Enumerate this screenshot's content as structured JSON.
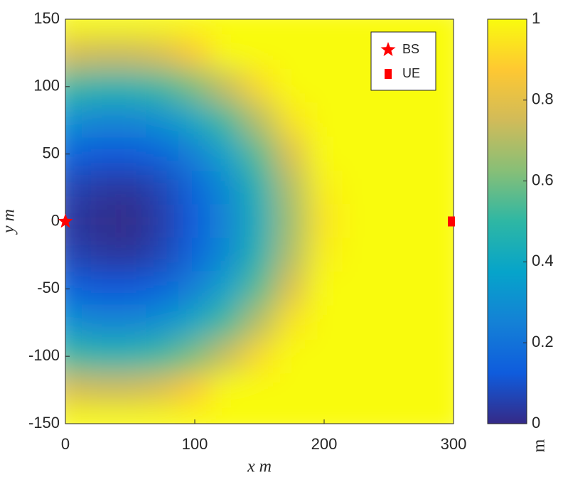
{
  "chart_data": {
    "type": "heatmap",
    "x_label": "x m",
    "y_label": "y m",
    "x": [
      0,
      25,
      50,
      75,
      100,
      125,
      150,
      175,
      200,
      225,
      250,
      275,
      300
    ],
    "y": [
      150,
      125,
      100,
      75,
      50,
      25,
      0,
      -25,
      -50,
      -75,
      -100,
      -125,
      -150
    ],
    "z": [
      [
        1,
        1,
        1,
        1,
        1,
        1,
        1,
        1,
        1,
        1,
        1,
        1,
        1
      ],
      [
        0.78,
        0.75,
        0.75,
        0.79,
        0.88,
        1,
        1,
        1,
        1,
        1,
        1,
        1,
        1
      ],
      [
        0.52,
        0.48,
        0.48,
        0.52,
        0.61,
        0.74,
        0.92,
        1,
        1,
        1,
        1,
        1,
        1
      ],
      [
        0.31,
        0.27,
        0.27,
        0.31,
        0.4,
        0.53,
        0.71,
        0.94,
        1,
        1,
        1,
        1,
        1
      ],
      [
        0.16,
        0.12,
        0.12,
        0.16,
        0.25,
        0.38,
        0.56,
        0.79,
        1,
        1,
        1,
        1,
        1
      ],
      [
        0.07,
        0.04,
        0.03,
        0.07,
        0.16,
        0.29,
        0.47,
        0.7,
        0.97,
        1,
        1,
        1,
        1
      ],
      [
        0.04,
        0.01,
        0.0,
        0.05,
        0.13,
        0.27,
        0.44,
        0.67,
        0.94,
        1,
        1,
        1,
        1
      ],
      [
        0.07,
        0.04,
        0.03,
        0.07,
        0.16,
        0.29,
        0.47,
        0.7,
        0.97,
        1,
        1,
        1,
        1
      ],
      [
        0.16,
        0.12,
        0.12,
        0.16,
        0.25,
        0.38,
        0.56,
        0.79,
        1,
        1,
        1,
        1,
        1
      ],
      [
        0.31,
        0.27,
        0.27,
        0.31,
        0.4,
        0.53,
        0.71,
        0.94,
        1,
        1,
        1,
        1,
        1
      ],
      [
        0.52,
        0.48,
        0.48,
        0.52,
        0.61,
        0.74,
        0.92,
        1,
        1,
        1,
        1,
        1,
        1
      ],
      [
        0.78,
        0.75,
        0.75,
        0.79,
        0.88,
        1,
        1,
        1,
        1,
        1,
        1,
        1,
        1
      ],
      [
        1,
        1,
        1,
        1,
        1,
        1,
        1,
        1,
        1,
        1,
        1,
        1,
        1
      ]
    ],
    "xlim": [
      0,
      300
    ],
    "xticks": [
      0,
      100,
      200,
      300
    ],
    "ylim": [
      -150,
      150
    ],
    "yticks": [
      -150,
      -100,
      -50,
      0,
      50,
      100,
      150
    ],
    "colormap": "parula",
    "colorbar": {
      "label": "m",
      "lim": [
        0,
        1
      ],
      "ticks": [
        0,
        0.2,
        0.4,
        0.6,
        0.8,
        1
      ]
    },
    "legend": "upper right",
    "markers": [
      {
        "name": "BS",
        "marker": "star",
        "color": "#ff0000",
        "x": 0,
        "y": 0
      },
      {
        "name": "UE",
        "marker": "square",
        "color": "#ff0000",
        "x": 300,
        "y": 0
      }
    ]
  }
}
